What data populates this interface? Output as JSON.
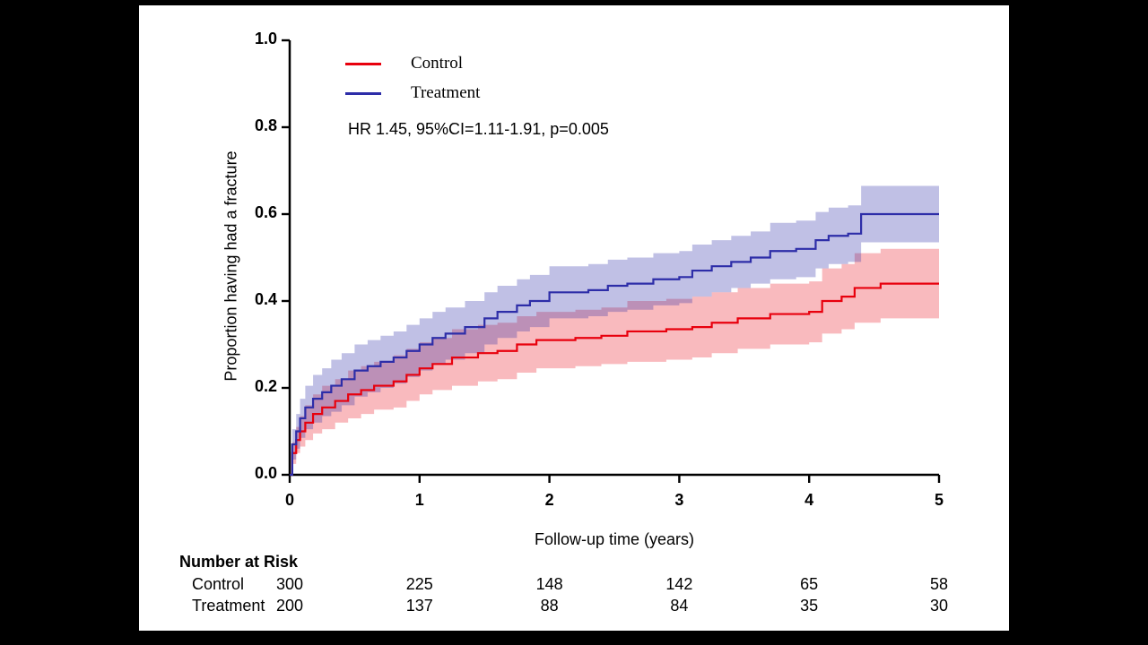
{
  "page": {
    "background_color": "#000000",
    "stage_color": "#ffffff",
    "axis_color": "#000000"
  },
  "number_at_risk": {
    "title": "Number at Risk",
    "time_points": [
      0,
      1,
      2,
      3,
      4,
      5
    ],
    "rows": [
      {
        "label": "Control",
        "values": [
          "300",
          "225",
          "148",
          "142",
          "65",
          "58"
        ]
      },
      {
        "label": "Treatment",
        "values": [
          "200",
          "137",
          "88",
          "84",
          "35",
          "30"
        ]
      }
    ]
  },
  "chart_data": {
    "type": "line",
    "subtype": "kaplan-meier-cumulative-incidence-step",
    "title": "",
    "xlabel": "Follow-up time (years)",
    "ylabel": "Proportion having had a fracture",
    "annotation": "HR 1.45, 95%CI=1.11-1.91, p=0.005",
    "xlim": [
      0,
      5
    ],
    "ylim": [
      0,
      1
    ],
    "xticks": [
      0,
      1,
      2,
      3,
      4,
      5
    ],
    "xtick_labels": [
      "0",
      "1",
      "2",
      "3",
      "4",
      "5"
    ],
    "yticks": [
      0.0,
      0.2,
      0.4,
      0.6,
      0.8,
      1.0
    ],
    "ytick_labels": [
      "0.0",
      "0.2",
      "0.4",
      "0.6",
      "0.8",
      "1.0"
    ],
    "grid": false,
    "legend_position": "top-left-inside",
    "series": [
      {
        "name": "Control",
        "color": "#e8000d",
        "band_opacity": 0.27,
        "x": [
          0,
          0.02,
          0.05,
          0.08,
          0.12,
          0.18,
          0.25,
          0.35,
          0.45,
          0.55,
          0.65,
          0.8,
          0.9,
          1.0,
          1.1,
          1.25,
          1.45,
          1.6,
          1.75,
          1.9,
          2.2,
          2.4,
          2.6,
          2.9,
          3.1,
          3.25,
          3.45,
          3.7,
          4.0,
          4.1,
          4.25,
          4.35,
          4.55,
          5.0
        ],
        "y": [
          0,
          0.05,
          0.08,
          0.1,
          0.12,
          0.14,
          0.155,
          0.17,
          0.185,
          0.195,
          0.205,
          0.215,
          0.23,
          0.245,
          0.255,
          0.27,
          0.28,
          0.285,
          0.3,
          0.31,
          0.315,
          0.32,
          0.33,
          0.335,
          0.34,
          0.35,
          0.36,
          0.37,
          0.375,
          0.4,
          0.41,
          0.43,
          0.44,
          0.44
        ],
        "lower": [
          0,
          0.025,
          0.05,
          0.065,
          0.08,
          0.095,
          0.105,
          0.12,
          0.13,
          0.14,
          0.15,
          0.155,
          0.17,
          0.185,
          0.195,
          0.205,
          0.215,
          0.22,
          0.235,
          0.245,
          0.25,
          0.255,
          0.26,
          0.265,
          0.27,
          0.28,
          0.29,
          0.3,
          0.305,
          0.325,
          0.335,
          0.35,
          0.36,
          0.36
        ],
        "upper": [
          0,
          0.075,
          0.11,
          0.135,
          0.16,
          0.185,
          0.205,
          0.22,
          0.24,
          0.25,
          0.26,
          0.275,
          0.29,
          0.305,
          0.315,
          0.335,
          0.345,
          0.35,
          0.365,
          0.375,
          0.38,
          0.385,
          0.4,
          0.405,
          0.41,
          0.42,
          0.43,
          0.44,
          0.445,
          0.475,
          0.485,
          0.51,
          0.52,
          0.52
        ]
      },
      {
        "name": "Treatment",
        "color": "#2d2da8",
        "band_opacity": 0.3,
        "x": [
          0,
          0.02,
          0.05,
          0.08,
          0.12,
          0.18,
          0.25,
          0.32,
          0.4,
          0.5,
          0.6,
          0.7,
          0.8,
          0.9,
          1.0,
          1.1,
          1.2,
          1.35,
          1.5,
          1.6,
          1.75,
          1.85,
          2.0,
          2.3,
          2.45,
          2.6,
          2.8,
          3.0,
          3.1,
          3.25,
          3.4,
          3.55,
          3.7,
          3.9,
          4.05,
          4.15,
          4.3,
          4.4,
          5.0
        ],
        "y": [
          0,
          0.07,
          0.1,
          0.13,
          0.155,
          0.175,
          0.19,
          0.205,
          0.22,
          0.24,
          0.25,
          0.26,
          0.27,
          0.285,
          0.3,
          0.315,
          0.325,
          0.34,
          0.36,
          0.375,
          0.39,
          0.4,
          0.42,
          0.425,
          0.435,
          0.44,
          0.45,
          0.455,
          0.47,
          0.48,
          0.49,
          0.5,
          0.515,
          0.52,
          0.54,
          0.55,
          0.555,
          0.6,
          0.6
        ],
        "lower": [
          0,
          0.035,
          0.06,
          0.085,
          0.105,
          0.12,
          0.135,
          0.145,
          0.16,
          0.18,
          0.19,
          0.2,
          0.21,
          0.225,
          0.24,
          0.255,
          0.265,
          0.28,
          0.3,
          0.315,
          0.33,
          0.34,
          0.36,
          0.365,
          0.375,
          0.38,
          0.39,
          0.395,
          0.41,
          0.42,
          0.43,
          0.44,
          0.45,
          0.455,
          0.475,
          0.485,
          0.49,
          0.535,
          0.535
        ],
        "upper": [
          0,
          0.105,
          0.14,
          0.175,
          0.205,
          0.23,
          0.245,
          0.265,
          0.28,
          0.3,
          0.31,
          0.32,
          0.33,
          0.345,
          0.36,
          0.375,
          0.385,
          0.4,
          0.42,
          0.435,
          0.45,
          0.46,
          0.48,
          0.485,
          0.495,
          0.5,
          0.51,
          0.515,
          0.53,
          0.54,
          0.55,
          0.56,
          0.58,
          0.585,
          0.605,
          0.615,
          0.62,
          0.665,
          0.665
        ]
      }
    ]
  }
}
